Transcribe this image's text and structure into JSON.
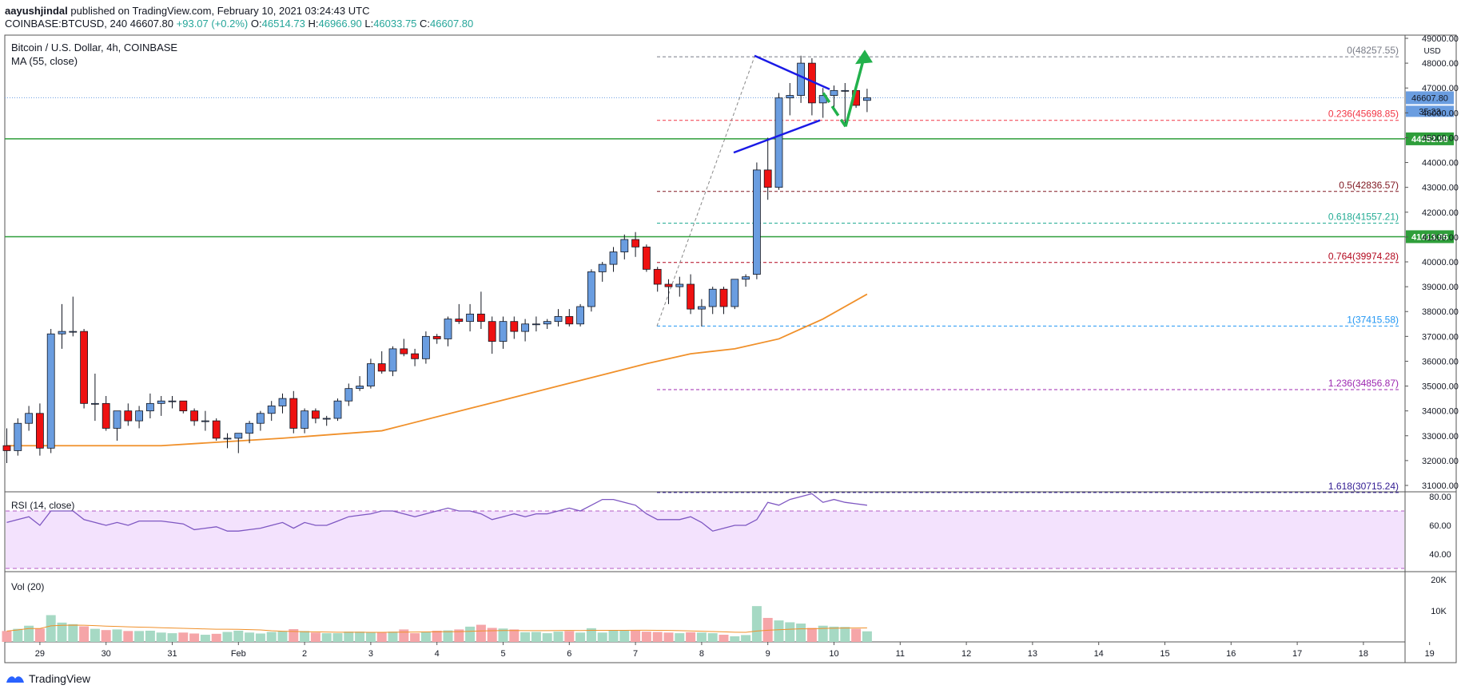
{
  "header": {
    "user": "aayushjindal",
    "published": "published on TradingView.com, February 10, 2021 03:24:43 UTC",
    "symbol": "COINBASE:BTCUSD, 240",
    "price": "46607.80",
    "change": "+93.07 (+0.2%)",
    "o_label": "O:",
    "o": "46514.73",
    "h_label": "H:",
    "h": "46966.90",
    "l_label": "L:",
    "l": "46033.75",
    "c_label": "C:",
    "c": "46607.80"
  },
  "legend": {
    "title": "Bitcoin / U.S. Dollar, 4h, COINBASE",
    "ma": "MA (55, close)",
    "rsi": "RSI (14, close)",
    "vol": "Vol (20)"
  },
  "price_axis": {
    "unit": "USD",
    "ticks": [
      "49000.00",
      "48000.00",
      "47000.00",
      "46000.00",
      "45000.00",
      "44000.00",
      "43000.00",
      "42000.00",
      "41000.00",
      "40000.00",
      "39000.00",
      "38000.00",
      "37000.00",
      "36000.00",
      "35000.00",
      "34000.00",
      "33000.00",
      "32000.00",
      "31000.00"
    ],
    "last_price_label": "46607.80",
    "countdown": "35:23",
    "level_1_label": "44952.98",
    "level_2_label": "41013.95"
  },
  "rsi_axis": {
    "ticks": [
      "80.00",
      "60.00",
      "40.00"
    ]
  },
  "vol_axis": {
    "ticks": [
      "20K",
      "10K"
    ]
  },
  "time_axis": {
    "labels": [
      "29",
      "30",
      "31",
      "Feb",
      "2",
      "3",
      "4",
      "5",
      "6",
      "7",
      "8",
      "9",
      "10",
      "11",
      "12",
      "13",
      "14",
      "15",
      "16",
      "17",
      "18",
      "19"
    ]
  },
  "fib_labels": [
    {
      "ratio": "0",
      "price": "48257.55",
      "color": "#787b86"
    },
    {
      "ratio": "0.236",
      "price": "45698.85",
      "color": "#f23645"
    },
    {
      "ratio": "0.5",
      "price": "42836.57",
      "color": "#801922"
    },
    {
      "ratio": "0.618",
      "price": "41557.21",
      "color": "#22ab94"
    },
    {
      "ratio": "0.764",
      "price": "39974.28",
      "color": "#b2071d"
    },
    {
      "ratio": "1",
      "price": "37415.58",
      "color": "#2196f3"
    },
    {
      "ratio": "1.236",
      "price": "34856.87",
      "color": "#9c27b0"
    },
    {
      "ratio": "1.618",
      "price": "30715.24",
      "color": "#311b92"
    }
  ],
  "colors": {
    "up": "#6a9de0",
    "down": "#ee1111",
    "ma": "#f0902a",
    "support": "#2e9e3a",
    "triangle": "#1a1ae6",
    "arrow": "#22b14c",
    "rsi_fill": "#f3e2fd",
    "vol_up": "#a6d9c4",
    "vol_down": "#f5a5a8"
  },
  "footer": {
    "brand": "TradingView"
  },
  "chart_data": {
    "type": "candlestick",
    "title": "Bitcoin / U.S. Dollar, 4h, COINBASE",
    "x_start": "Jan 29",
    "interval_hours": 4,
    "ylim": [
      30500,
      49300
    ],
    "candles": [
      [
        32600,
        33300,
        31900,
        32400
      ],
      [
        32400,
        33700,
        32200,
        33500
      ],
      [
        33500,
        34200,
        33200,
        33900
      ],
      [
        33900,
        34300,
        32200,
        32500
      ],
      [
        32500,
        37300,
        32300,
        37100
      ],
      [
        37100,
        38300,
        36500,
        37200
      ],
      [
        37200,
        38600,
        37000,
        37200
      ],
      [
        37200,
        37300,
        34100,
        34300
      ],
      [
        34300,
        35500,
        33600,
        34300
      ],
      [
        34300,
        34600,
        33200,
        33300
      ],
      [
        33300,
        34000,
        32800,
        34000
      ],
      [
        34000,
        34300,
        33400,
        33600
      ],
      [
        33600,
        34200,
        33300,
        34000
      ],
      [
        34000,
        34700,
        33700,
        34300
      ],
      [
        34300,
        34600,
        33800,
        34400
      ],
      [
        34400,
        34600,
        34100,
        34400
      ],
      [
        34400,
        34400,
        33900,
        34000
      ],
      [
        34000,
        34100,
        33400,
        33600
      ],
      [
        33600,
        34000,
        33200,
        33600
      ],
      [
        33600,
        33700,
        32800,
        32900
      ],
      [
        32900,
        33100,
        32500,
        32900
      ],
      [
        32900,
        33100,
        32300,
        33100
      ],
      [
        33100,
        33600,
        32700,
        33500
      ],
      [
        33500,
        34000,
        33200,
        33900
      ],
      [
        33900,
        34400,
        33600,
        34200
      ],
      [
        34200,
        34700,
        33900,
        34500
      ],
      [
        34500,
        34800,
        33100,
        33300
      ],
      [
        33300,
        34100,
        33100,
        34000
      ],
      [
        34000,
        34100,
        33500,
        33700
      ],
      [
        33700,
        33800,
        33400,
        33700
      ],
      [
        33700,
        34500,
        33600,
        34400
      ],
      [
        34400,
        35100,
        34200,
        34900
      ],
      [
        34900,
        35400,
        34800,
        35000
      ],
      [
        35000,
        36100,
        34900,
        35900
      ],
      [
        35900,
        36400,
        35500,
        35600
      ],
      [
        35600,
        36600,
        35400,
        36500
      ],
      [
        36500,
        36900,
        36200,
        36300
      ],
      [
        36300,
        36500,
        35800,
        36100
      ],
      [
        36100,
        37200,
        35900,
        37000
      ],
      [
        37000,
        37100,
        36700,
        36900
      ],
      [
        36900,
        37800,
        36600,
        37700
      ],
      [
        37700,
        38300,
        37500,
        37600
      ],
      [
        37600,
        38300,
        37200,
        37900
      ],
      [
        37900,
        38800,
        37300,
        37600
      ],
      [
        37600,
        37800,
        36300,
        36800
      ],
      [
        36800,
        37800,
        36500,
        37600
      ],
      [
        37600,
        37800,
        36900,
        37200
      ],
      [
        37200,
        37700,
        36800,
        37500
      ],
      [
        37500,
        37800,
        37200,
        37500
      ],
      [
        37500,
        37700,
        37300,
        37600
      ],
      [
        37600,
        38100,
        37400,
        37800
      ],
      [
        37800,
        38100,
        37400,
        37500
      ],
      [
        37500,
        38300,
        37400,
        38200
      ],
      [
        38200,
        39700,
        38000,
        39600
      ],
      [
        39600,
        40000,
        39200,
        39900
      ],
      [
        39900,
        40600,
        39600,
        40400
      ],
      [
        40400,
        41100,
        40100,
        40900
      ],
      [
        40900,
        41200,
        40200,
        40600
      ],
      [
        40600,
        40700,
        39600,
        39700
      ],
      [
        39700,
        39800,
        38800,
        39100
      ],
      [
        39100,
        39300,
        38300,
        39000
      ],
      [
        39000,
        39400,
        38600,
        39100
      ],
      [
        39100,
        39500,
        37900,
        38100
      ],
      [
        38100,
        38500,
        37400,
        38200
      ],
      [
        38200,
        39000,
        37900,
        38900
      ],
      [
        38900,
        39000,
        37900,
        38200
      ],
      [
        38200,
        39300,
        38100,
        39300
      ],
      [
        39300,
        39500,
        39000,
        39400
      ],
      [
        39500,
        44000,
        39300,
        43700
      ],
      [
        43700,
        45000,
        42500,
        43000
      ],
      [
        43000,
        46800,
        42900,
        46600
      ],
      [
        46600,
        47200,
        45900,
        46700
      ],
      [
        46700,
        48300,
        46400,
        48000
      ],
      [
        48000,
        48200,
        45900,
        46400
      ],
      [
        46400,
        47000,
        45800,
        46700
      ],
      [
        46700,
        47100,
        46200,
        46900
      ],
      [
        46900,
        47200,
        45500,
        46900
      ],
      [
        46900,
        47000,
        46200,
        46300
      ],
      [
        46500,
        46970,
        46030,
        46610
      ]
    ],
    "ma55": [
      [
        0,
        32600
      ],
      [
        5,
        32600
      ],
      [
        14,
        32600
      ],
      [
        25,
        32900
      ],
      [
        34,
        33200
      ],
      [
        42,
        34100
      ],
      [
        50,
        35000
      ],
      [
        58,
        35900
      ],
      [
        62,
        36300
      ],
      [
        66,
        36500
      ],
      [
        70,
        36900
      ],
      [
        74,
        37700
      ],
      [
        78,
        38700
      ]
    ],
    "rsi": [
      62,
      64,
      66,
      60,
      70,
      70,
      70,
      64,
      62,
      60,
      62,
      60,
      63,
      63,
      63,
      62,
      61,
      57,
      58,
      59,
      56,
      56,
      57,
      58,
      60,
      62,
      58,
      62,
      60,
      60,
      63,
      66,
      67,
      68,
      70,
      70,
      68,
      66,
      68,
      70,
      72,
      70,
      70,
      68,
      64,
      66,
      68,
      66,
      68,
      68,
      70,
      72,
      70,
      74,
      78,
      78,
      76,
      74,
      68,
      64,
      64,
      64,
      66,
      62,
      56,
      58,
      60,
      60,
      64,
      76,
      74,
      78,
      80,
      82,
      76,
      78,
      76,
      75,
      74
    ],
    "volume": [
      3500,
      4200,
      5200,
      4300,
      8600,
      6200,
      5700,
      5000,
      4200,
      3800,
      4000,
      3500,
      3500,
      3600,
      3000,
      2800,
      3000,
      2700,
      2300,
      2600,
      3200,
      3600,
      3000,
      2700,
      3200,
      3400,
      4100,
      3500,
      3000,
      2800,
      2800,
      3300,
      3300,
      3100,
      3200,
      3300,
      4000,
      2800,
      3300,
      3600,
      3700,
      4000,
      4900,
      5500,
      4500,
      4300,
      4000,
      3100,
      3200,
      2800,
      3300,
      3500,
      3000,
      4400,
      3000,
      3600,
      3600,
      3600,
      3300,
      3200,
      3000,
      2800,
      3100,
      3000,
      2800,
      2300,
      1800,
      2200,
      11500,
      7700,
      6900,
      6300,
      5900,
      4500,
      5200,
      4900,
      4800,
      4200,
      3400
    ],
    "rsi_band": [
      30,
      70
    ],
    "rsi_ylim": [
      25,
      85
    ],
    "vol_ylim": [
      0,
      22000
    ],
    "fib_levels": [
      48257.55,
      45698.85,
      42836.57,
      41557.21,
      39974.28,
      37415.58,
      34856.87,
      30715.24
    ],
    "support_levels": [
      44952.98,
      41013.95
    ],
    "triangle": {
      "upper": [
        [
          72,
          48300
        ],
        [
          80,
          47000
        ]
      ],
      "lower": [
        [
          72,
          44400
        ],
        [
          80,
          45700
        ]
      ]
    },
    "arrow": {
      "start": [
        80,
        46800
      ],
      "mid": [
        82,
        45400
      ],
      "end": [
        85,
        48300
      ]
    },
    "last_price": 46607.8
  }
}
